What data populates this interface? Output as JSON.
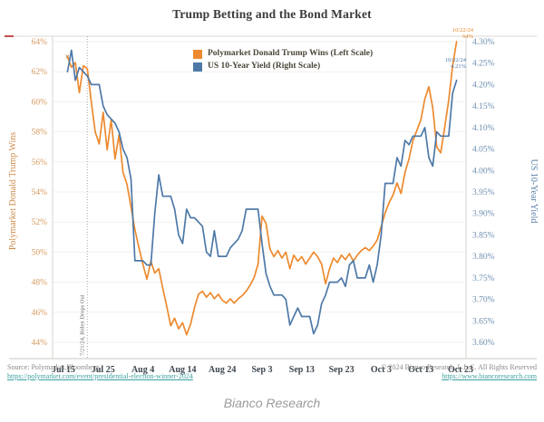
{
  "page": {
    "caption": "Bianco Research"
  },
  "footer": {
    "source_label": "Source: Polymarket,Bloomberg",
    "source_link": "https://polymarket.com/event/presidential-election-winner-2024",
    "copyright": "© 2024 Bianco Research, L.L.C. All Rights Reserved",
    "copyright_link": "https://www.biancoresearch.com"
  },
  "chart_data": {
    "type": "line",
    "title": "Trump Betting and the Bond Market",
    "legend_position": "top-center",
    "grid": "horizontal-faint",
    "left_axis": {
      "title": "Polymarket Donald Trump Wins",
      "color": "#d79a5e",
      "min": 44,
      "max": 64,
      "ticks": [
        "64%",
        "62%",
        "60%",
        "58%",
        "56%",
        "54%",
        "52%",
        "50%",
        "48%",
        "46%",
        "44%"
      ]
    },
    "right_axis": {
      "title": "US 10-Year Yield",
      "color": "#6e8fb0",
      "min": 3.6,
      "max": 4.3,
      "ticks": [
        "4.30%",
        "4.25%",
        "4.20%",
        "4.15%",
        "4.10%",
        "4.05%",
        "4.00%",
        "3.95%",
        "3.90%",
        "3.85%",
        "3.80%",
        "3.75%",
        "3.70%",
        "3.65%",
        "3.60%"
      ]
    },
    "x_axis": {
      "ticks": [
        "Jul 15",
        "Jul 25",
        "Aug 4",
        "Aug 14",
        "Aug 24",
        "Sep 3",
        "Sep 13",
        "Sep 23",
        "Oct 3",
        "Oct 13",
        "Oct 23"
      ],
      "span_days": 100
    },
    "event_line": {
      "date": "07/21",
      "label": "7/21/24, Biden Drops Out"
    },
    "end_labels": [
      {
        "series": "trump",
        "line1": "10/22/24",
        "line2": "64%"
      },
      {
        "series": "yield",
        "line1": "10/22/24",
        "line2": "4.21%"
      }
    ],
    "dates": [
      "07/16",
      "07/17",
      "07/18",
      "07/19",
      "07/20",
      "07/21",
      "07/22",
      "07/23",
      "07/24",
      "07/25",
      "07/26",
      "07/27",
      "07/28",
      "07/29",
      "07/30",
      "07/31",
      "08/01",
      "08/02",
      "08/03",
      "08/04",
      "08/05",
      "08/06",
      "08/07",
      "08/08",
      "08/09",
      "08/10",
      "08/11",
      "08/12",
      "08/13",
      "08/14",
      "08/15",
      "08/16",
      "08/17",
      "08/18",
      "08/19",
      "08/20",
      "08/21",
      "08/22",
      "08/23",
      "08/24",
      "08/25",
      "08/26",
      "08/27",
      "08/28",
      "08/29",
      "08/30",
      "08/31",
      "09/01",
      "09/02",
      "09/03",
      "09/04",
      "09/05",
      "09/06",
      "09/07",
      "09/08",
      "09/09",
      "09/10",
      "09/11",
      "09/12",
      "09/13",
      "09/14",
      "09/15",
      "09/16",
      "09/17",
      "09/18",
      "09/19",
      "09/20",
      "09/21",
      "09/22",
      "09/23",
      "09/24",
      "09/25",
      "09/26",
      "09/27",
      "09/28",
      "09/29",
      "09/30",
      "10/01",
      "10/02",
      "10/03",
      "10/04",
      "10/05",
      "10/06",
      "10/07",
      "10/08",
      "10/09",
      "10/10",
      "10/11",
      "10/12",
      "10/13",
      "10/14",
      "10/15",
      "10/16",
      "10/17",
      "10/18",
      "10/19",
      "10/20",
      "10/21",
      "10/22"
    ],
    "series": [
      {
        "id": "trump",
        "name": "Polymarket Donald Trump Wins (Left Scale)",
        "axis": "left",
        "color": "#ed8a2f",
        "start_marker": "x",
        "values": [
          63.0,
          62.3,
          62.6,
          60.6,
          62.4,
          62.2,
          60.0,
          58.0,
          57.2,
          59.3,
          56.8,
          58.8,
          56.2,
          57.8,
          55.3,
          54.5,
          53.0,
          51.5,
          50.3,
          49.2,
          48.2,
          49.4,
          48.6,
          48.9,
          47.6,
          46.4,
          45.1,
          45.6,
          44.9,
          45.3,
          44.5,
          45.2,
          46.3,
          47.2,
          47.4,
          47.0,
          47.3,
          46.9,
          47.2,
          46.8,
          46.6,
          46.9,
          46.6,
          46.9,
          47.1,
          47.4,
          47.8,
          48.3,
          49.2,
          52.4,
          51.9,
          50.2,
          49.7,
          50.1,
          49.6,
          50.0,
          48.9,
          49.8,
          49.4,
          49.7,
          49.2,
          49.6,
          50.0,
          49.7,
          49.2,
          47.9,
          48.9,
          49.6,
          49.3,
          49.8,
          49.5,
          49.9,
          49.4,
          49.8,
          50.1,
          50.3,
          50.1,
          50.4,
          50.8,
          51.7,
          52.6,
          53.3,
          53.8,
          54.6,
          53.9,
          55.3,
          56.2,
          57.4,
          58.1,
          58.8,
          60.2,
          61.0,
          59.6,
          57.0,
          56.6,
          58.3,
          60.1,
          62.4,
          64.0
        ]
      },
      {
        "id": "yield",
        "name": "US 10-Year Yield (Right Scale)",
        "axis": "right",
        "color": "#4e79a7",
        "start_marker": "none",
        "values": [
          4.23,
          4.28,
          4.21,
          4.24,
          4.23,
          4.22,
          4.2,
          4.2,
          4.2,
          4.15,
          4.13,
          4.12,
          4.11,
          4.09,
          4.05,
          4.03,
          3.98,
          3.79,
          3.79,
          3.79,
          3.78,
          3.78,
          3.9,
          3.99,
          3.94,
          3.94,
          3.94,
          3.91,
          3.85,
          3.83,
          3.91,
          3.89,
          3.89,
          3.88,
          3.87,
          3.81,
          3.8,
          3.86,
          3.8,
          3.8,
          3.8,
          3.82,
          3.83,
          3.84,
          3.86,
          3.91,
          3.91,
          3.91,
          3.91,
          3.83,
          3.76,
          3.73,
          3.71,
          3.71,
          3.71,
          3.7,
          3.64,
          3.66,
          3.68,
          3.66,
          3.66,
          3.66,
          3.62,
          3.64,
          3.69,
          3.71,
          3.74,
          3.74,
          3.74,
          3.75,
          3.73,
          3.78,
          3.79,
          3.75,
          3.75,
          3.75,
          3.78,
          3.74,
          3.78,
          3.85,
          3.97,
          3.97,
          3.97,
          4.03,
          4.01,
          4.07,
          4.06,
          4.08,
          4.08,
          4.08,
          4.1,
          4.03,
          4.01,
          4.09,
          4.08,
          4.08,
          4.08,
          4.18,
          4.21
        ]
      }
    ]
  }
}
